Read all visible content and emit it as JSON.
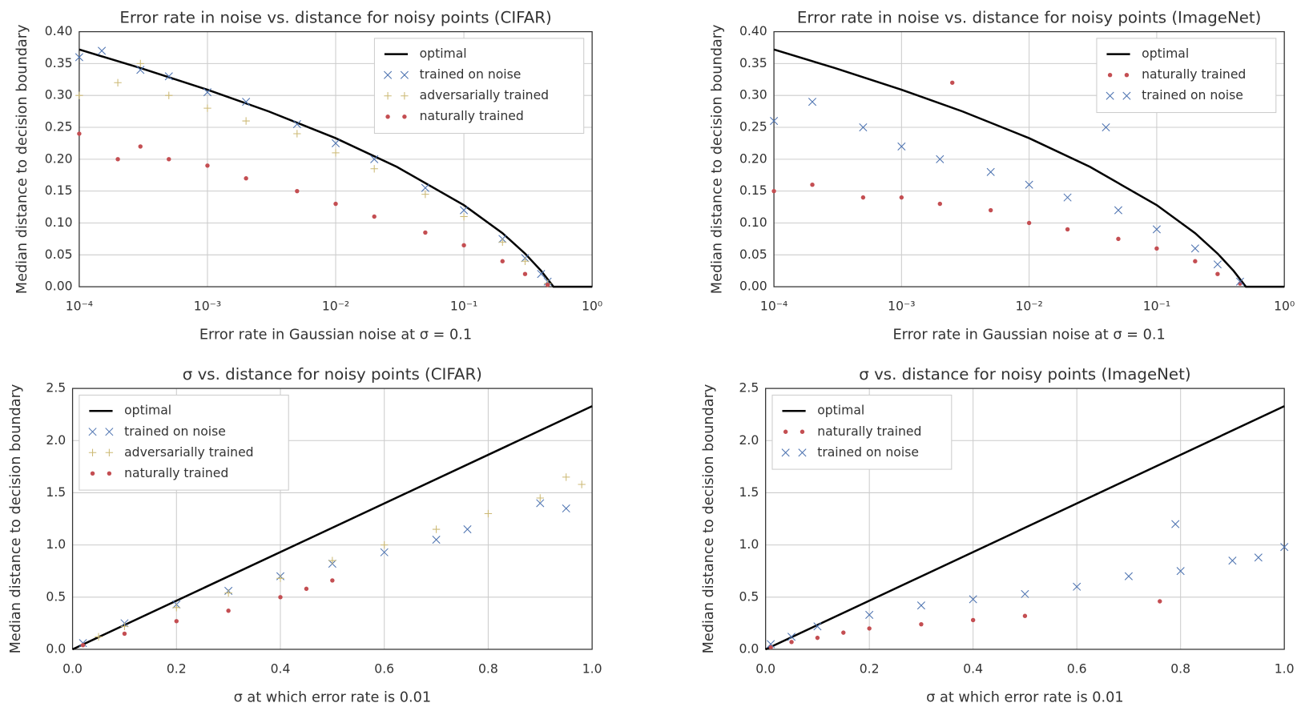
{
  "chart_data": [
    {
      "type": "scatter",
      "title": "Error rate in noise vs. distance for noisy points (CIFAR)",
      "xlabel": "Error rate in Gaussian noise at σ = 0.1",
      "ylabel": "Median distance to decision boundary",
      "xscale": "log",
      "xlim": [
        0.0001,
        1
      ],
      "ylim": [
        0,
        0.4
      ],
      "grid": true,
      "legend": "upper right",
      "xticks": [
        {
          "value": 0.0001,
          "label": "10⁻⁴"
        },
        {
          "value": 0.001,
          "label": "10⁻³"
        },
        {
          "value": 0.01,
          "label": "10⁻²"
        },
        {
          "value": 0.1,
          "label": "10⁻¹"
        },
        {
          "value": 1,
          "label": "10⁰"
        }
      ],
      "yticks": [
        {
          "value": 0,
          "label": "0.00"
        },
        {
          "value": 0.05,
          "label": "0.05"
        },
        {
          "value": 0.1,
          "label": "0.10"
        },
        {
          "value": 0.15,
          "label": "0.15"
        },
        {
          "value": 0.2,
          "label": "0.20"
        },
        {
          "value": 0.25,
          "label": "0.25"
        },
        {
          "value": 0.3,
          "label": "0.30"
        },
        {
          "value": 0.35,
          "label": "0.35"
        },
        {
          "value": 0.4,
          "label": "0.40"
        }
      ],
      "series": [
        {
          "name": "optimal",
          "marker": "line",
          "color": "#000000",
          "x": [
            0.0001,
            0.0003,
            0.001,
            0.003,
            0.01,
            0.03,
            0.1,
            0.2,
            0.3,
            0.4,
            0.5,
            1
          ],
          "values": [
            0.372,
            0.343,
            0.309,
            0.275,
            0.233,
            0.188,
            0.128,
            0.084,
            0.052,
            0.025,
            0,
            0
          ]
        },
        {
          "name": "trained on noise",
          "marker": "x",
          "color": "#4c72b0",
          "x": [
            0.0001,
            0.00015,
            0.0003,
            0.0005,
            0.001,
            0.002,
            0.005,
            0.01,
            0.02,
            0.05,
            0.1,
            0.2,
            0.3,
            0.4,
            0.45
          ],
          "values": [
            0.36,
            0.37,
            0.34,
            0.33,
            0.305,
            0.29,
            0.255,
            0.225,
            0.2,
            0.155,
            0.12,
            0.075,
            0.045,
            0.02,
            0.008
          ]
        },
        {
          "name": "adversarially trained",
          "marker": "+",
          "color": "#ccb974",
          "x": [
            0.0001,
            0.0002,
            0.0003,
            0.0005,
            0.001,
            0.002,
            0.005,
            0.01,
            0.02,
            0.05,
            0.1,
            0.2,
            0.3,
            0.45
          ],
          "values": [
            0.3,
            0.32,
            0.35,
            0.3,
            0.28,
            0.26,
            0.24,
            0.21,
            0.185,
            0.145,
            0.11,
            0.07,
            0.04,
            0.005
          ]
        },
        {
          "name": "naturally trained",
          "marker": "o",
          "color": "#c44e52",
          "x": [
            0.0001,
            0.0002,
            0.0003,
            0.0005,
            0.001,
            0.002,
            0.005,
            0.01,
            0.02,
            0.05,
            0.1,
            0.2,
            0.3,
            0.45
          ],
          "values": [
            0.24,
            0.2,
            0.22,
            0.2,
            0.19,
            0.17,
            0.15,
            0.13,
            0.11,
            0.085,
            0.065,
            0.04,
            0.02,
            0.003
          ]
        }
      ]
    },
    {
      "type": "scatter",
      "title": "Error rate in noise vs. distance for noisy points (ImageNet)",
      "xlabel": "Error rate in Gaussian noise at σ = 0.1",
      "ylabel": "Median distance to decision boundary",
      "xscale": "log",
      "xlim": [
        0.0001,
        1
      ],
      "ylim": [
        0,
        0.4
      ],
      "grid": true,
      "legend": "upper right",
      "xticks": [
        {
          "value": 0.0001,
          "label": "10⁻⁴"
        },
        {
          "value": 0.001,
          "label": "10⁻³"
        },
        {
          "value": 0.01,
          "label": "10⁻²"
        },
        {
          "value": 0.1,
          "label": "10⁻¹"
        },
        {
          "value": 1,
          "label": "10⁰"
        }
      ],
      "yticks": [
        {
          "value": 0,
          "label": "0.00"
        },
        {
          "value": 0.05,
          "label": "0.05"
        },
        {
          "value": 0.1,
          "label": "0.10"
        },
        {
          "value": 0.15,
          "label": "0.15"
        },
        {
          "value": 0.2,
          "label": "0.20"
        },
        {
          "value": 0.25,
          "label": "0.25"
        },
        {
          "value": 0.3,
          "label": "0.30"
        },
        {
          "value": 0.35,
          "label": "0.35"
        },
        {
          "value": 0.4,
          "label": "0.40"
        }
      ],
      "series": [
        {
          "name": "optimal",
          "marker": "line",
          "color": "#000000",
          "x": [
            0.0001,
            0.0003,
            0.001,
            0.003,
            0.01,
            0.03,
            0.1,
            0.2,
            0.3,
            0.4,
            0.5,
            1
          ],
          "values": [
            0.372,
            0.343,
            0.309,
            0.275,
            0.233,
            0.188,
            0.128,
            0.084,
            0.052,
            0.025,
            0,
            0
          ]
        },
        {
          "name": "naturally trained",
          "marker": "o",
          "color": "#c44e52",
          "x": [
            0.0001,
            0.0002,
            0.0005,
            0.001,
            0.002,
            0.0025,
            0.005,
            0.01,
            0.02,
            0.05,
            0.1,
            0.2,
            0.3,
            0.45
          ],
          "values": [
            0.15,
            0.16,
            0.14,
            0.14,
            0.13,
            0.32,
            0.12,
            0.1,
            0.09,
            0.075,
            0.06,
            0.04,
            0.02,
            0.005
          ]
        },
        {
          "name": "trained on noise",
          "marker": "x",
          "color": "#4c72b0",
          "x": [
            0.0001,
            0.0002,
            0.0005,
            0.001,
            0.002,
            0.005,
            0.01,
            0.02,
            0.04,
            0.05,
            0.1,
            0.2,
            0.3,
            0.45
          ],
          "values": [
            0.26,
            0.29,
            0.25,
            0.22,
            0.2,
            0.18,
            0.16,
            0.14,
            0.25,
            0.12,
            0.09,
            0.06,
            0.035,
            0.008
          ]
        }
      ]
    },
    {
      "type": "scatter",
      "title": "σ vs. distance for noisy points (CIFAR)",
      "xlabel": "σ at which error rate is 0.01",
      "ylabel": "Median distance to decision boundary",
      "xscale": "linear",
      "xlim": [
        0,
        1
      ],
      "ylim": [
        0,
        2.5
      ],
      "grid": true,
      "legend": "upper left",
      "xticks": [
        {
          "value": 0,
          "label": "0.0"
        },
        0.2,
        0.4,
        0.6,
        0.8,
        {
          "value": 1,
          "label": "1.0"
        }
      ],
      "yticks": [
        {
          "value": 0,
          "label": "0.0"
        },
        0.5,
        {
          "value": 1,
          "label": "1.0"
        },
        1.5,
        {
          "value": 2,
          "label": "2.0"
        },
        2.5
      ],
      "series": [
        {
          "name": "optimal",
          "marker": "line",
          "color": "#000000",
          "x": [
            0,
            1
          ],
          "values": [
            0,
            2.33
          ]
        },
        {
          "name": "trained on noise",
          "marker": "x",
          "color": "#4c72b0",
          "x": [
            0.02,
            0.1,
            0.2,
            0.3,
            0.4,
            0.5,
            0.6,
            0.7,
            0.76,
            0.9,
            0.95
          ],
          "values": [
            0.06,
            0.25,
            0.43,
            0.56,
            0.7,
            0.82,
            0.93,
            1.05,
            1.15,
            1.4,
            1.35
          ]
        },
        {
          "name": "adversarially trained",
          "marker": "+",
          "color": "#ccb974",
          "x": [
            0.05,
            0.1,
            0.2,
            0.3,
            0.4,
            0.5,
            0.6,
            0.7,
            0.8,
            0.9,
            0.95,
            0.98
          ],
          "values": [
            0.12,
            0.22,
            0.4,
            0.54,
            0.68,
            0.85,
            1.0,
            1.15,
            1.3,
            1.45,
            1.65,
            1.58
          ]
        },
        {
          "name": "naturally trained",
          "marker": "o",
          "color": "#c44e52",
          "x": [
            0.02,
            0.1,
            0.2,
            0.3,
            0.4,
            0.45,
            0.5
          ],
          "values": [
            0.04,
            0.15,
            0.27,
            0.37,
            0.5,
            0.58,
            0.66
          ]
        }
      ]
    },
    {
      "type": "scatter",
      "title": "σ vs. distance for noisy points (ImageNet)",
      "xlabel": "σ at which error rate is 0.01",
      "ylabel": "Median distance to decision boundary",
      "xscale": "linear",
      "xlim": [
        0,
        1
      ],
      "ylim": [
        0,
        2.5
      ],
      "grid": true,
      "legend": "upper left",
      "xticks": [
        {
          "value": 0,
          "label": "0.0"
        },
        0.2,
        0.4,
        0.6,
        0.8,
        {
          "value": 1,
          "label": "1.0"
        }
      ],
      "yticks": [
        {
          "value": 0,
          "label": "0.0"
        },
        0.5,
        {
          "value": 1,
          "label": "1.0"
        },
        1.5,
        {
          "value": 2,
          "label": "2.0"
        },
        2.5
      ],
      "series": [
        {
          "name": "optimal",
          "marker": "line",
          "color": "#000000",
          "x": [
            0,
            1
          ],
          "values": [
            0,
            2.33
          ]
        },
        {
          "name": "naturally trained",
          "marker": "o",
          "color": "#c44e52",
          "x": [
            0.01,
            0.05,
            0.1,
            0.15,
            0.2,
            0.3,
            0.4,
            0.5,
            0.76
          ],
          "values": [
            0.02,
            0.07,
            0.11,
            0.16,
            0.2,
            0.24,
            0.28,
            0.32,
            0.46
          ]
        },
        {
          "name": "trained on noise",
          "marker": "x",
          "color": "#4c72b0",
          "x": [
            0.01,
            0.05,
            0.1,
            0.2,
            0.3,
            0.4,
            0.5,
            0.6,
            0.7,
            0.79,
            0.8,
            0.9,
            0.95,
            1.0
          ],
          "values": [
            0.05,
            0.12,
            0.22,
            0.33,
            0.42,
            0.48,
            0.53,
            0.6,
            0.7,
            1.2,
            0.75,
            0.85,
            0.88,
            0.98
          ]
        }
      ]
    }
  ]
}
